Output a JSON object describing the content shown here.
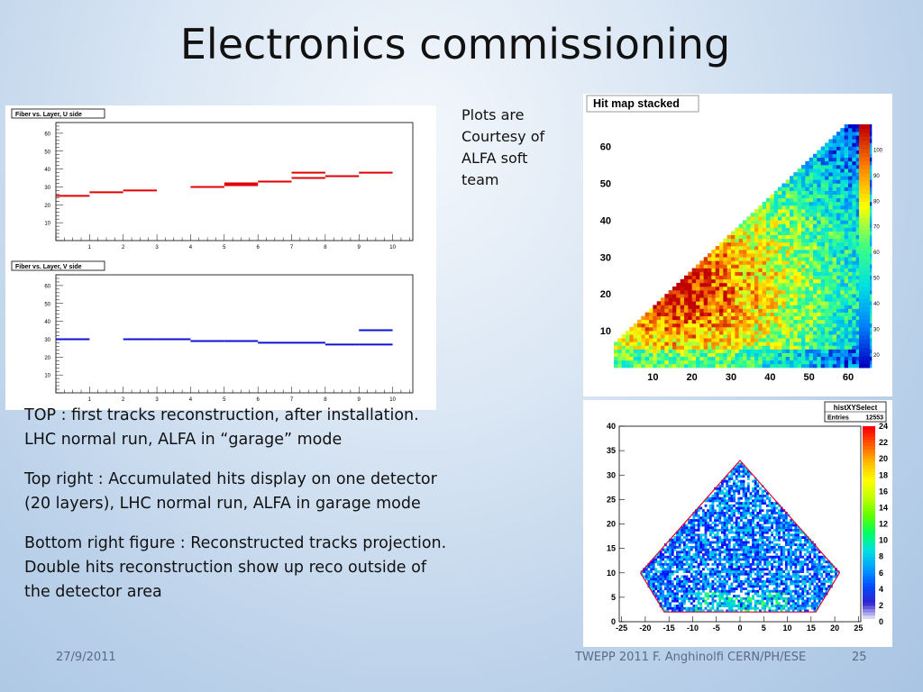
{
  "slide": {
    "title": "Electronics commissioning",
    "courtesy": "Plots are\nCourtesy of\nALFA soft\nteam",
    "paragraphs": [
      "TOP : first tracks reconstruction, after installation. LHC  normal run, ALFA in “garage” mode",
      "Top right : Accumulated hits display on one detector (20 layers), LHC  normal run, ALFA in garage mode",
      "Bottom right figure : Reconstructed tracks projection. Double hits reconstruction show up reco outside of the detector area"
    ],
    "date": "27/9/2011",
    "conference": "TWEPP 2011 F. Anghinolfi CERN/PH/ESE",
    "page": "25"
  },
  "chart_data": [
    {
      "type": "line",
      "title": "Fiber vs. Layer, U side",
      "x_ticks": [
        "1",
        "2",
        "3",
        "4",
        "5",
        "6",
        "7",
        "8",
        "9",
        "10"
      ],
      "y_ticks": [
        "10",
        "20",
        "30",
        "40",
        "50",
        "60"
      ],
      "xlim": [
        0,
        10.6
      ],
      "ylim": [
        0,
        66
      ],
      "color": "#e00000",
      "segments": [
        {
          "x0": 0,
          "x1": 1,
          "y": 25
        },
        {
          "x0": 1,
          "x1": 2,
          "y": 27
        },
        {
          "x0": 2,
          "x1": 3,
          "y": 28
        },
        {
          "x0": 4,
          "x1": 5,
          "y": 30
        },
        {
          "x0": 5,
          "x1": 6,
          "y": 32
        },
        {
          "x0": 5,
          "x1": 6,
          "y": 31
        },
        {
          "x0": 6,
          "x1": 7,
          "y": 33
        },
        {
          "x0": 7,
          "x1": 8,
          "y": 35
        },
        {
          "x0": 7,
          "x1": 8,
          "y": 38
        },
        {
          "x0": 8,
          "x1": 9,
          "y": 36
        },
        {
          "x0": 9,
          "x1": 10,
          "y": 38
        }
      ]
    },
    {
      "type": "line",
      "title": "Fiber vs. Layer, V side",
      "x_ticks": [
        "1",
        "2",
        "3",
        "4",
        "5",
        "6",
        "7",
        "8",
        "9",
        "10"
      ],
      "y_ticks": [
        "10",
        "20",
        "30",
        "40",
        "50",
        "60"
      ],
      "xlim": [
        0,
        10.6
      ],
      "ylim": [
        0,
        66
      ],
      "color": "#1010d0",
      "segments": [
        {
          "x0": 0,
          "x1": 1,
          "y": 30
        },
        {
          "x0": 2,
          "x1": 3,
          "y": 30
        },
        {
          "x0": 3,
          "x1": 4,
          "y": 30
        },
        {
          "x0": 4,
          "x1": 5,
          "y": 29
        },
        {
          "x0": 5,
          "x1": 6,
          "y": 29
        },
        {
          "x0": 6,
          "x1": 7,
          "y": 28
        },
        {
          "x0": 7,
          "x1": 8,
          "y": 28
        },
        {
          "x0": 8,
          "x1": 9,
          "y": 27
        },
        {
          "x0": 9,
          "x1": 10,
          "y": 27
        },
        {
          "x0": 9,
          "x1": 10,
          "y": 35
        }
      ]
    },
    {
      "type": "heatmap",
      "title": "Hit map stacked",
      "x_ticks": [
        "10",
        "20",
        "30",
        "40",
        "50",
        "60"
      ],
      "y_ticks": [
        "10",
        "20",
        "30",
        "40",
        "50",
        "60"
      ],
      "xlim": [
        0,
        66
      ],
      "ylim": [
        0,
        66
      ],
      "z_ticks": [
        "20",
        "30",
        "40",
        "50",
        "60",
        "70",
        "80",
        "90",
        "100"
      ],
      "zlim": [
        15,
        110
      ],
      "description_colors": [
        "#0000c0",
        "#0080ff",
        "#00e0e0",
        "#40ff80",
        "#ffff00",
        "#ff8000",
        "#c00000"
      ]
    },
    {
      "type": "heatmap",
      "title": "histXYSelect",
      "stats_label": "Entries",
      "stats_value": "12553",
      "x_ticks": [
        "-25",
        "-20",
        "-15",
        "-10",
        "-5",
        "0",
        "5",
        "10",
        "15",
        "20",
        "25"
      ],
      "y_ticks": [
        "0",
        "5",
        "10",
        "15",
        "20",
        "25",
        "30",
        "35",
        "40"
      ],
      "xlim": [
        -25.5,
        25.5
      ],
      "ylim": [
        0,
        40
      ],
      "z_ticks": [
        "0",
        "2",
        "4",
        "6",
        "8",
        "10",
        "12",
        "14",
        "16",
        "18",
        "20",
        "22",
        "24"
      ],
      "zlim": [
        0,
        24
      ],
      "outline": [
        [
          -21,
          10
        ],
        [
          0,
          33
        ],
        [
          21,
          10
        ],
        [
          16,
          2
        ],
        [
          -16,
          2
        ],
        [
          -21,
          10
        ]
      ]
    }
  ]
}
